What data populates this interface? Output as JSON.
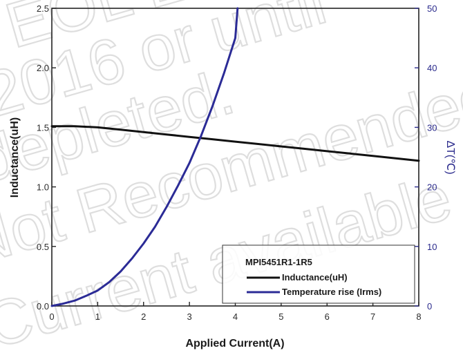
{
  "chart_data": {
    "type": "line",
    "xlabel": "Applied Current(A)",
    "ylabel": "Inductance(uH)",
    "y2label": "ΔT(℃)",
    "xlim": [
      0,
      8
    ],
    "ylim": [
      0,
      2.5
    ],
    "y2lim": [
      0,
      50
    ],
    "x_ticks": [
      "0",
      "1",
      "2",
      "3",
      "4",
      "5",
      "6",
      "7",
      "8"
    ],
    "y_ticks": [
      "0.0",
      "0.5",
      "1.0",
      "1.5",
      "2.0",
      "2.5"
    ],
    "y2_ticks": [
      "0",
      "10",
      "20",
      "30",
      "40",
      "50"
    ],
    "grid": false,
    "legend": {
      "title": "MPI5451R1-1R5",
      "position": "bottom-right"
    },
    "series": [
      {
        "name": "Inductance(uH)",
        "axis": "left",
        "color": "#111111",
        "x": [
          0,
          0.5,
          1,
          1.5,
          2,
          2.5,
          3,
          3.5,
          4,
          4.5,
          5,
          5.5,
          6,
          6.5,
          7,
          7.5,
          8
        ],
        "y": [
          1.51,
          1.51,
          1.5,
          1.48,
          1.46,
          1.44,
          1.42,
          1.4,
          1.38,
          1.36,
          1.34,
          1.32,
          1.3,
          1.28,
          1.26,
          1.24,
          1.22
        ]
      },
      {
        "name": "Temperature rise (Irms)",
        "axis": "right",
        "color": "#2b2b96",
        "x": [
          0,
          0.25,
          0.5,
          0.75,
          1,
          1.25,
          1.5,
          1.75,
          2,
          2.25,
          2.5,
          2.75,
          3,
          3.25,
          3.5,
          3.75,
          4,
          4.05
        ],
        "y": [
          0,
          0.4,
          0.9,
          1.7,
          2.6,
          4.0,
          5.8,
          8.0,
          10.5,
          13.3,
          16.6,
          20.2,
          24.0,
          28.5,
          33.5,
          39.0,
          45.0,
          50.0
        ]
      }
    ]
  },
  "watermark": {
    "lines": [
      "EOL Effective",
      "2016 or until",
      "depleted.",
      "Not Recommended",
      "Current available"
    ],
    "color": "#c4c4c4"
  }
}
